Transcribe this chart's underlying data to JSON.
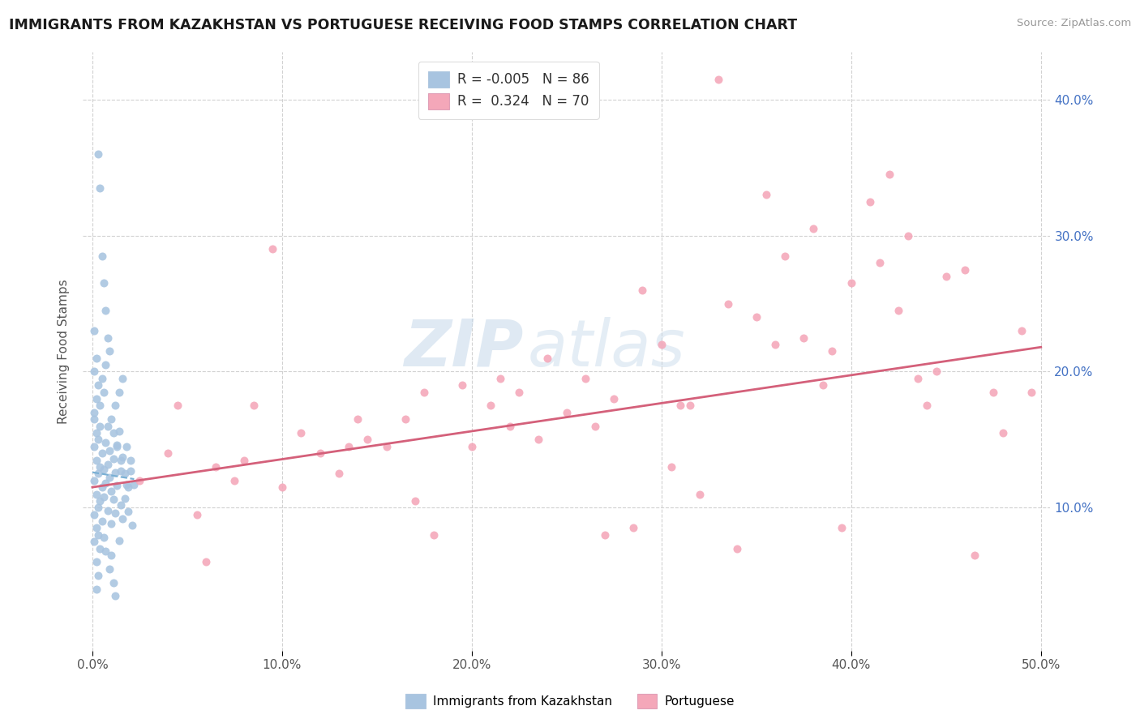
{
  "title": "IMMIGRANTS FROM KAZAKHSTAN VS PORTUGUESE RECEIVING FOOD STAMPS CORRELATION CHART",
  "source": "Source: ZipAtlas.com",
  "ylabel": "Receiving Food Stamps",
  "legend_label_1": "Immigrants from Kazakhstan",
  "legend_label_2": "Portuguese",
  "r1_val": "-0.005",
  "n1_val": "86",
  "r2_val": "0.324",
  "n2_val": "70",
  "xlim": [
    -0.005,
    0.505
  ],
  "ylim": [
    -0.005,
    0.435
  ],
  "xtick_vals": [
    0.0,
    0.1,
    0.2,
    0.3,
    0.4,
    0.5
  ],
  "ytick_vals": [
    0.1,
    0.2,
    0.3,
    0.4
  ],
  "color_kaz": "#a8c4e0",
  "color_kaz_line": "#7ab0d4",
  "color_por": "#f4a7b9",
  "color_por_line": "#d4607a",
  "bg_color": "#ffffff",
  "grid_color": "#cccccc",
  "right_axis_color": "#4472c4",
  "title_color": "#1a1a1a",
  "source_color": "#999999",
  "ylabel_color": "#555555",
  "watermark_zip_color": "#c5d8ea",
  "watermark_atlas_color": "#c5d8ea",
  "kaz_x": [
    0.001,
    0.001,
    0.001,
    0.001,
    0.001,
    0.002,
    0.002,
    0.002,
    0.002,
    0.002,
    0.003,
    0.003,
    0.003,
    0.003,
    0.004,
    0.004,
    0.004,
    0.004,
    0.005,
    0.005,
    0.005,
    0.006,
    0.006,
    0.006,
    0.007,
    0.007,
    0.007,
    0.008,
    0.008,
    0.009,
    0.009,
    0.01,
    0.01,
    0.011,
    0.011,
    0.012,
    0.012,
    0.013,
    0.013,
    0.014,
    0.014,
    0.015,
    0.015,
    0.016,
    0.016,
    0.017,
    0.018,
    0.019,
    0.02,
    0.021,
    0.022,
    0.001,
    0.001,
    0.001,
    0.002,
    0.002,
    0.003,
    0.004,
    0.005,
    0.006,
    0.007,
    0.008,
    0.009,
    0.01,
    0.011,
    0.012,
    0.013,
    0.014,
    0.015,
    0.016,
    0.017,
    0.018,
    0.019,
    0.02,
    0.003,
    0.004,
    0.005,
    0.006,
    0.007,
    0.008,
    0.009,
    0.01,
    0.011,
    0.012,
    0.002,
    0.003
  ],
  "kaz_y": [
    0.12,
    0.095,
    0.145,
    0.075,
    0.165,
    0.11,
    0.085,
    0.135,
    0.06,
    0.155,
    0.1,
    0.125,
    0.08,
    0.15,
    0.105,
    0.13,
    0.07,
    0.16,
    0.115,
    0.09,
    0.14,
    0.108,
    0.128,
    0.078,
    0.118,
    0.148,
    0.068,
    0.132,
    0.098,
    0.122,
    0.142,
    0.112,
    0.088,
    0.136,
    0.106,
    0.126,
    0.096,
    0.116,
    0.146,
    0.076,
    0.156,
    0.102,
    0.127,
    0.092,
    0.137,
    0.107,
    0.117,
    0.097,
    0.127,
    0.087,
    0.117,
    0.17,
    0.2,
    0.23,
    0.18,
    0.21,
    0.19,
    0.175,
    0.195,
    0.185,
    0.205,
    0.16,
    0.215,
    0.165,
    0.155,
    0.175,
    0.145,
    0.185,
    0.135,
    0.195,
    0.125,
    0.145,
    0.115,
    0.135,
    0.36,
    0.335,
    0.285,
    0.265,
    0.245,
    0.225,
    0.055,
    0.065,
    0.045,
    0.035,
    0.04,
    0.05
  ],
  "por_x": [
    0.215,
    0.33,
    0.135,
    0.45,
    0.26,
    0.38,
    0.095,
    0.175,
    0.31,
    0.42,
    0.065,
    0.24,
    0.355,
    0.48,
    0.14,
    0.29,
    0.41,
    0.075,
    0.195,
    0.335,
    0.46,
    0.11,
    0.265,
    0.39,
    0.045,
    0.225,
    0.365,
    0.49,
    0.155,
    0.3,
    0.425,
    0.085,
    0.21,
    0.35,
    0.475,
    0.12,
    0.275,
    0.4,
    0.055,
    0.235,
    0.375,
    0.445,
    0.165,
    0.315,
    0.435,
    0.1,
    0.25,
    0.385,
    0.025,
    0.32,
    0.18,
    0.44,
    0.13,
    0.27,
    0.395,
    0.06,
    0.2,
    0.34,
    0.465,
    0.145,
    0.285,
    0.415,
    0.08,
    0.22,
    0.36,
    0.495,
    0.17,
    0.305,
    0.43,
    0.04
  ],
  "por_y": [
    0.195,
    0.415,
    0.145,
    0.27,
    0.195,
    0.305,
    0.29,
    0.185,
    0.175,
    0.345,
    0.13,
    0.21,
    0.33,
    0.155,
    0.165,
    0.26,
    0.325,
    0.12,
    0.19,
    0.25,
    0.275,
    0.155,
    0.16,
    0.215,
    0.175,
    0.185,
    0.285,
    0.23,
    0.145,
    0.22,
    0.245,
    0.175,
    0.175,
    0.24,
    0.185,
    0.14,
    0.18,
    0.265,
    0.095,
    0.15,
    0.225,
    0.2,
    0.165,
    0.175,
    0.195,
    0.115,
    0.17,
    0.19,
    0.12,
    0.11,
    0.08,
    0.175,
    0.125,
    0.08,
    0.085,
    0.06,
    0.145,
    0.07,
    0.065,
    0.15,
    0.085,
    0.28,
    0.135,
    0.16,
    0.22,
    0.185,
    0.105,
    0.13,
    0.3,
    0.14
  ]
}
